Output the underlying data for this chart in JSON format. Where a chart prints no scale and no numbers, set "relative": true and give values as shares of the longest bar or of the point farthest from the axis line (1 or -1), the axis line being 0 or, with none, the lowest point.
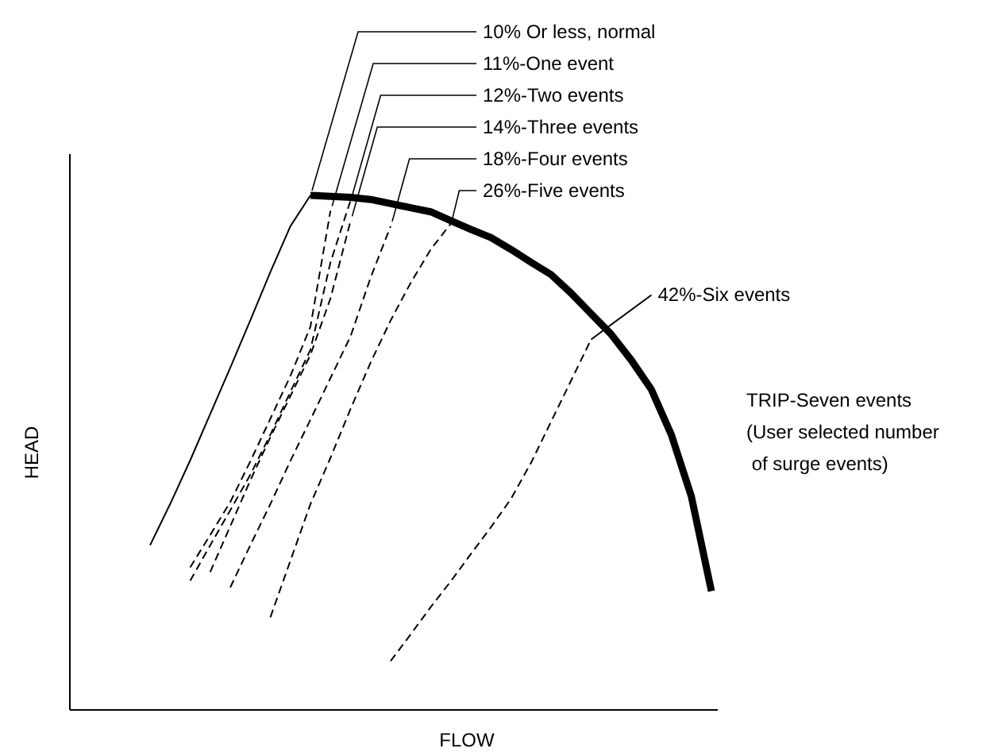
{
  "chart_data": {
    "type": "line",
    "relative": true,
    "xlabel": "FLOW",
    "ylabel": "HEAD",
    "marker": "none",
    "categories": [
      null,
      null,
      null,
      null,
      null,
      null,
      null,
      null,
      null,
      null,
      null,
      null,
      null,
      null,
      null,
      null,
      null,
      null,
      null,
      null,
      null,
      null,
      null,
      null,
      null,
      null,
      null,
      null,
      null,
      null,
      null,
      null,
      null
    ],
    "series": [
      {
        "color": "#000000",
        "line_style": "solid",
        "values": [
          null,
          null,
          null,
          null,
          null,
          null,
          null,
          null,
          null,
          null,
          null,
          null,
          1.0,
          0.998,
          0.996,
          0.992,
          0.984,
          0.976,
          0.968,
          0.951,
          0.934,
          0.918,
          0.895,
          0.87,
          0.846,
          0.81,
          0.77,
          0.73,
          0.68,
          0.623,
          0.535,
          0.415,
          0.231
        ]
      },
      {
        "name": "10% Or less, normal",
        "color": "#000000",
        "line_style": "solid",
        "values": [
          null,
          null,
          null,
          null,
          0.32,
          0.4,
          0.485,
          0.575,
          0.665,
          0.757,
          0.851,
          0.94,
          1.0,
          null,
          null,
          null,
          null,
          null,
          null,
          null,
          null,
          null,
          null,
          null,
          null,
          null,
          null,
          null,
          null,
          null,
          null,
          null,
          null
        ]
      },
      {
        "name": "11%-One event",
        "color": "#000000",
        "line_style": "dashed",
        "values": [
          null,
          null,
          null,
          null,
          null,
          null,
          0.277,
          0.34,
          0.404,
          0.483,
          0.566,
          0.649,
          0.745,
          0.97,
          null,
          null,
          null,
          null,
          null,
          null,
          null,
          null,
          null,
          null,
          null,
          null,
          null,
          null,
          null,
          null,
          null,
          null,
          null
        ]
      },
      {
        "name": "12%-Two events",
        "color": "#000000",
        "line_style": "dashed",
        "values": [
          null,
          null,
          null,
          null,
          null,
          null,
          0.251,
          0.32,
          0.388,
          0.457,
          0.535,
          0.618,
          0.7,
          0.87,
          0.99,
          null,
          null,
          null,
          null,
          null,
          null,
          null,
          null,
          null,
          null,
          null,
          null,
          null,
          null,
          null,
          null,
          null,
          null
        ]
      },
      {
        "name": "14%-Three events",
        "color": "#000000",
        "line_style": "dashed",
        "values": [
          null,
          null,
          null,
          null,
          null,
          null,
          null,
          0.268,
          0.357,
          0.446,
          0.53,
          0.61,
          0.69,
          0.8,
          0.95,
          null,
          null,
          null,
          null,
          null,
          null,
          null,
          null,
          null,
          null,
          null,
          null,
          null,
          null,
          null,
          null,
          null,
          null
        ]
      },
      {
        "name": "18%-Four events",
        "color": "#000000",
        "line_style": "dashed",
        "values": [
          null,
          null,
          null,
          null,
          null,
          null,
          null,
          null,
          0.238,
          0.32,
          0.4,
          0.484,
          0.564,
          0.645,
          0.726,
          0.84,
          0.94,
          null,
          null,
          null,
          null,
          null,
          null,
          null,
          null,
          null,
          null,
          null,
          null,
          null,
          null,
          null,
          null
        ]
      },
      {
        "name": "26%-Five events",
        "color": "#000000",
        "line_style": "dashed",
        "values": [
          null,
          null,
          null,
          null,
          null,
          null,
          null,
          null,
          null,
          null,
          0.18,
          0.29,
          0.4,
          0.49,
          0.585,
          0.675,
          0.757,
          0.83,
          0.895,
          0.945,
          null,
          null,
          null,
          null,
          null,
          null,
          null,
          null,
          null,
          null,
          null,
          null,
          null
        ]
      },
      {
        "name": "42%-Six events",
        "color": "#000000",
        "line_style": "dashed",
        "values": [
          null,
          null,
          null,
          null,
          null,
          null,
          null,
          null,
          null,
          null,
          null,
          null,
          null,
          null,
          null,
          null,
          0.095,
          0.147,
          0.2,
          0.25,
          0.303,
          0.355,
          0.41,
          0.48,
          0.56,
          0.64,
          0.72,
          null,
          null,
          null,
          null,
          null,
          null
        ]
      }
    ],
    "annotations": [
      "TRIP-Seven events\n(User selected number\n of surge events)"
    ]
  }
}
